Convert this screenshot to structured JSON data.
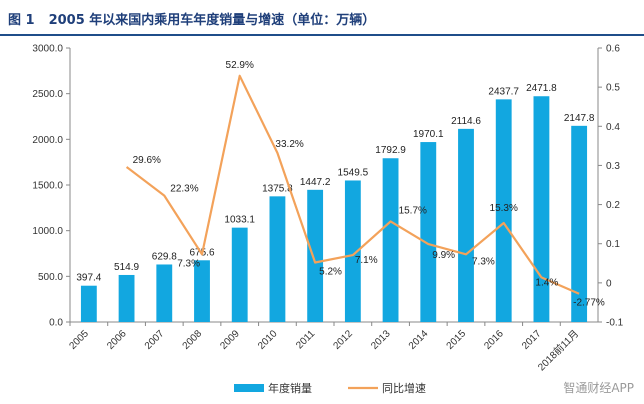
{
  "figure": {
    "number": "图 1",
    "title": "2005 年以来国内乘用车年度销量与增速（单位：万辆）"
  },
  "watermark": "智通财经APP",
  "colors": {
    "bar": "#12a7e0",
    "line": "#f3a25a",
    "title": "#1f3f7a",
    "rule": "#1f4e8a"
  },
  "chart_data": {
    "type": "bar+line",
    "categories": [
      "2005",
      "2006",
      "2007",
      "2008",
      "2009",
      "2010",
      "2011",
      "2012",
      "2013",
      "2014",
      "2015",
      "2016",
      "2017",
      "2018前11月"
    ],
    "series": [
      {
        "name": "年度销量",
        "type": "bar",
        "axis": "left",
        "values": [
          397.4,
          514.9,
          629.8,
          675.6,
          1033.1,
          1375.8,
          1447.2,
          1549.5,
          1792.9,
          1970.1,
          2114.6,
          2437.7,
          2471.8,
          2147.8
        ],
        "labels": [
          "397.4",
          "514.9",
          "629.8",
          "675.6",
          "1033.1",
          "1375.8",
          "1447.2",
          "1549.5",
          "1792.9",
          "1970.1",
          "2114.6",
          "2437.7",
          "2471.8",
          "2147.8"
        ]
      },
      {
        "name": "同比增速",
        "type": "line",
        "axis": "right",
        "values": [
          null,
          0.296,
          0.223,
          0.073,
          0.529,
          0.332,
          0.052,
          0.071,
          0.157,
          0.099,
          0.073,
          0.153,
          0.014,
          -0.0277
        ],
        "labels": [
          "",
          "29.6%",
          "22.3%",
          "7.3%",
          "52.9%",
          "33.2%",
          "5.2%",
          "7.1%",
          "15.7%",
          "9.9%",
          "7.3%",
          "15.3%",
          "1.4%",
          "-2.77%"
        ]
      }
    ],
    "y_left": {
      "min": 0,
      "max": 3000,
      "ticks": [
        0,
        500,
        1000,
        1500,
        2000,
        2500,
        3000
      ],
      "tick_labels": [
        "0.0",
        "500.0",
        "1000.0",
        "1500.0",
        "2000.0",
        "2500.0",
        "3000.0"
      ]
    },
    "y_right": {
      "min": -0.1,
      "max": 0.6,
      "ticks": [
        -0.1,
        0,
        0.1,
        0.2,
        0.3,
        0.4,
        0.5,
        0.6
      ],
      "tick_labels": [
        "-0.1",
        "0",
        "0.1",
        "0.2",
        "0.3",
        "0.4",
        "0.5",
        "0.6"
      ]
    },
    "legend": [
      "年度销量",
      "同比增速"
    ],
    "legend_position": "bottom",
    "grid": false
  }
}
